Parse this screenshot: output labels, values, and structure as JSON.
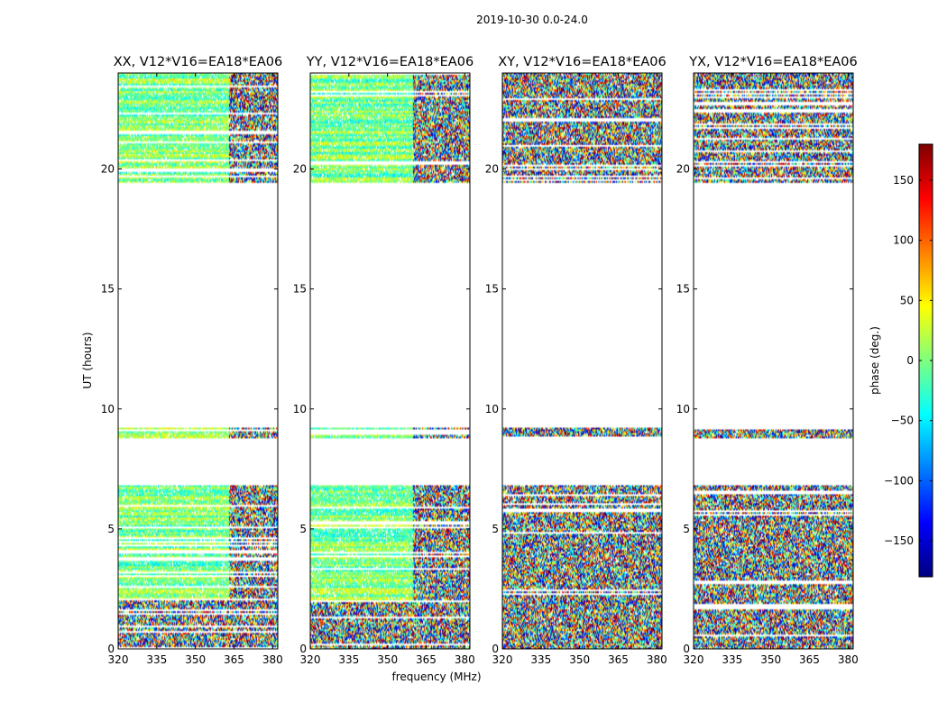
{
  "figure": {
    "suptitle": "2019-10-30 0.0-24.0",
    "xlabel": "frequency (MHz)",
    "ylabel": "UT (hours)"
  },
  "chart_data": {
    "type": "heatmap",
    "title": "2019-10-30 0.0-24.0",
    "xlabel": "frequency (MHz)",
    "ylabel": "UT (hours)",
    "x_range": [
      320,
      382
    ],
    "y_range": [
      0,
      24
    ],
    "x_ticks": [
      320,
      335,
      350,
      365,
      380
    ],
    "y_ticks": [
      0,
      5,
      10,
      15,
      20
    ],
    "colorbar": {
      "label": "phase (deg.)",
      "range": [
        -180,
        180
      ],
      "ticks": [
        -150,
        -100,
        -50,
        0,
        50,
        100,
        150
      ],
      "tick_labels": [
        "−150",
        "−100",
        "−50",
        "0",
        "50",
        "100",
        "150"
      ],
      "colormap": "jet",
      "colors": [
        "#00007f",
        "#0000ff",
        "#007fff",
        "#00ffff",
        "#7fff7f",
        "#ffff00",
        "#ff7f00",
        "#ff0000",
        "#7f0000"
      ]
    },
    "data_intervals_ut_hours": [
      [
        0.0,
        6.8
      ],
      [
        8.8,
        9.2
      ],
      [
        19.4,
        24.0
      ]
    ],
    "panels": [
      {
        "title": "XX, V12*V16=EA18*EA06",
        "polarization": "XX",
        "coherent_until_mhz": 363
      },
      {
        "title": "YY, V12*V16=EA18*EA06",
        "polarization": "YY",
        "coherent_until_mhz": 360
      },
      {
        "title": "XY, V12*V16=EA18*EA06",
        "polarization": "XY",
        "coherent_until_mhz": 320
      },
      {
        "title": "YX, V12*V16=EA18*EA06",
        "polarization": "YX",
        "coherent_until_mhz": 320
      }
    ]
  }
}
